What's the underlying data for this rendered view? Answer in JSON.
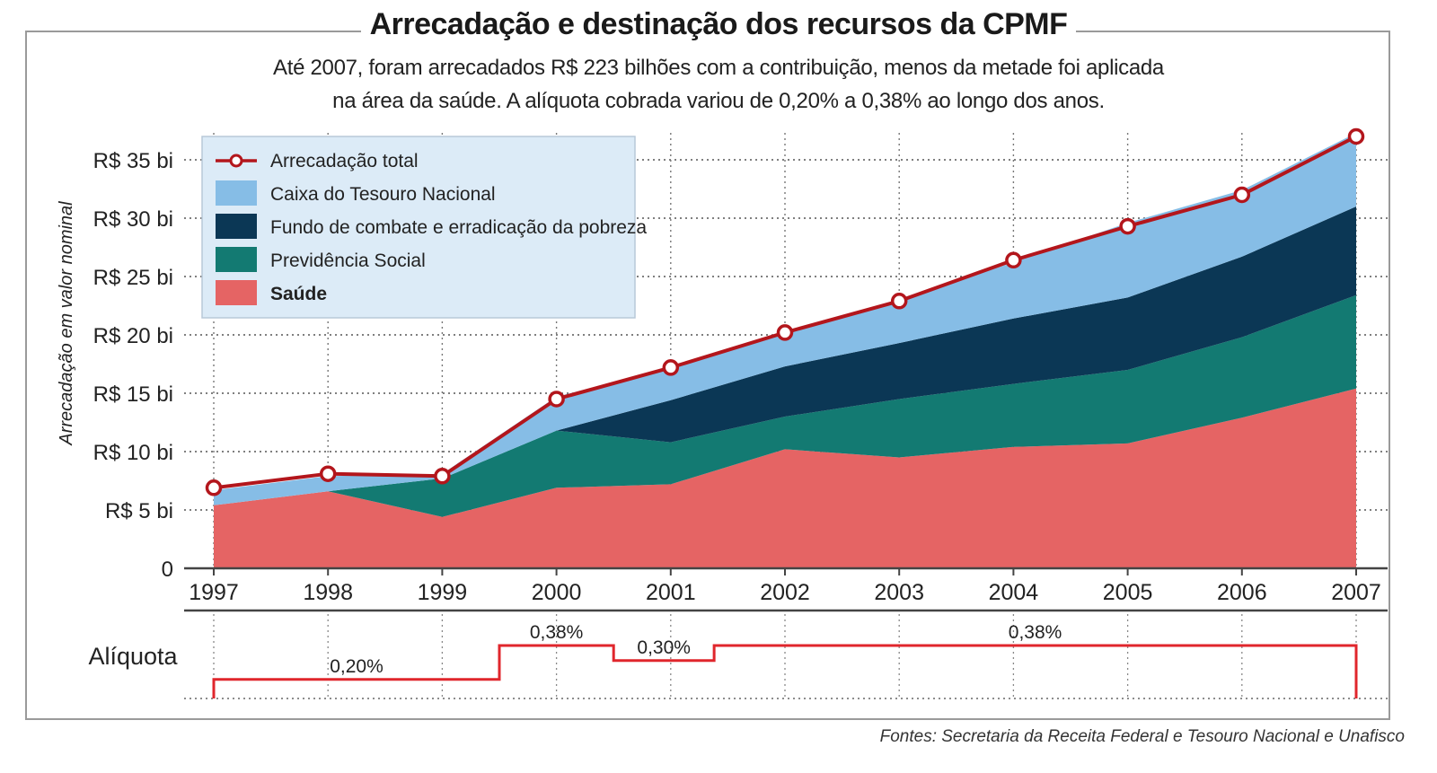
{
  "title": "Arrecadação e destinação dos recursos da CPMF",
  "subtitle_line1": "Até 2007, foram arrecadados R$ 223 bilhões com a contribuição, menos da metade foi aplicada",
  "subtitle_line2": "na área da saúde. A alíquota cobrada variou de 0,20% a 0,38% ao longo dos anos.",
  "source": "Fontes: Secretaria da Receita Federal e Tesouro Nacional e Unafisco",
  "chart_data": {
    "type": "area",
    "stacked": true,
    "ylabel": "Arrecadação em valor nominal",
    "ylim": [
      0,
      36
    ],
    "yticks": [
      {
        "value": 0,
        "label": "0"
      },
      {
        "value": 5,
        "label": "R$ 5 bi"
      },
      {
        "value": 10,
        "label": "R$ 10 bi"
      },
      {
        "value": 15,
        "label": "R$ 15 bi"
      },
      {
        "value": 20,
        "label": "R$ 20 bi"
      },
      {
        "value": 25,
        "label": "R$ 25 bi"
      },
      {
        "value": 30,
        "label": "R$ 30 bi"
      },
      {
        "value": 35,
        "label": "R$ 35 bi"
      }
    ],
    "grid": true,
    "legend_position": "top-left",
    "categories": [
      "1997",
      "1998",
      "1999",
      "2000",
      "2001",
      "2002",
      "2003",
      "2004",
      "2005",
      "2006",
      "2007"
    ],
    "series": [
      {
        "name": "Saúde",
        "color": "#e56464",
        "values": [
          5.4,
          6.6,
          4.4,
          6.9,
          7.2,
          10.2,
          9.5,
          10.4,
          10.7,
          12.9,
          15.4
        ]
      },
      {
        "name": "Previdência Social",
        "color": "#137a72",
        "values": [
          0,
          0,
          3.3,
          4.9,
          3.6,
          2.8,
          5.0,
          5.4,
          6.3,
          6.9,
          8.0
        ]
      },
      {
        "name": "Fundo de combate e erradicação da pobreza",
        "color": "#0b3755",
        "values": [
          0,
          0,
          0,
          0,
          3.6,
          4.3,
          4.8,
          5.6,
          6.2,
          6.9,
          7.6
        ]
      },
      {
        "name": "Caixa do Tesouro Nacional",
        "color": "#86bde6",
        "values": [
          1.3,
          1.3,
          0.4,
          2.9,
          2.8,
          2.8,
          3.7,
          4.8,
          6.4,
          5.7,
          6.3
        ]
      }
    ],
    "line_series": {
      "name": "Arrecadação total",
      "color": "#b3161c",
      "values": [
        6.9,
        8.1,
        7.9,
        14.5,
        17.2,
        20.2,
        22.9,
        26.4,
        29.3,
        32.0,
        37.0
      ]
    },
    "rate_axis": {
      "label": "Alíquota",
      "color": "#e0262c",
      "segments": [
        {
          "from": 1997,
          "to": 1999.5,
          "rate": "0,20%"
        },
        {
          "from": 1999.5,
          "to": 2000.5,
          "rate": "0,38%"
        },
        {
          "from": 2000.5,
          "to": 2001.38,
          "rate": "0,30%"
        },
        {
          "from": 2001.38,
          "to": 2007,
          "rate": "0,38%"
        }
      ]
    }
  }
}
